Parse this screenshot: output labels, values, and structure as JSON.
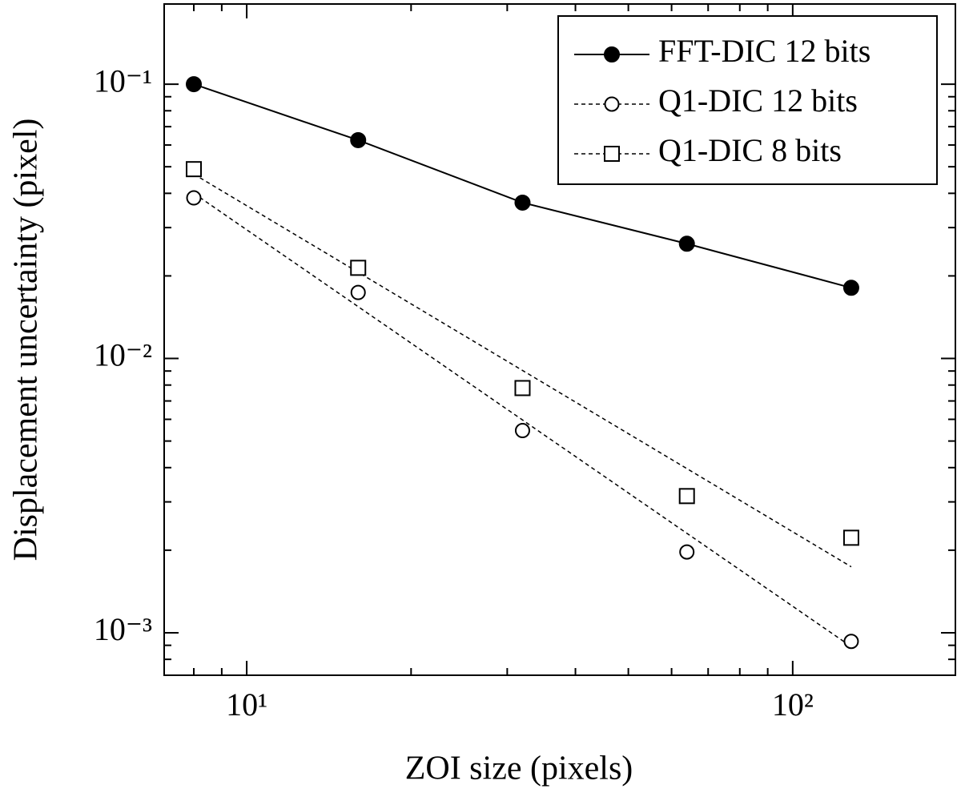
{
  "chart_data": {
    "type": "line",
    "xlabel": "ZOI size (pixels)",
    "ylabel": "Displacement uncertainty (pixel)",
    "xscale": "log",
    "yscale": "log",
    "xlim": [
      7.06,
      198.6
    ],
    "ylim": [
      0.0007,
      0.196
    ],
    "xticks": [
      {
        "value": 10,
        "label": "10¹"
      },
      {
        "value": 100,
        "label": "10²"
      }
    ],
    "yticks": [
      {
        "value": 0.1,
        "label": "10⁻¹"
      },
      {
        "value": 0.01,
        "label": "10⁻²"
      },
      {
        "value": 0.001,
        "label": "10⁻³"
      }
    ],
    "xminorticks": [
      8,
      9,
      20,
      30,
      40,
      50,
      60,
      70,
      80,
      90
    ],
    "yminorticks": [
      0.0008,
      0.0009,
      0.002,
      0.003,
      0.004,
      0.005,
      0.006,
      0.007,
      0.008,
      0.009,
      0.02,
      0.03,
      0.04,
      0.05,
      0.06,
      0.07,
      0.08,
      0.09
    ],
    "legend": "upper right",
    "x": [
      8,
      16,
      32,
      64,
      128
    ],
    "series": [
      {
        "name": "FFT-DIC 12 bits",
        "color": "#000000",
        "marker": "filled-circle",
        "line": "solid",
        "values": [
          0.1,
          0.0625,
          0.037,
          0.0262,
          0.0181
        ]
      },
      {
        "name": "Q1-DIC 12 bits",
        "color": "#000000",
        "marker": "circle",
        "line": "dashed",
        "values": [
          0.0385,
          0.0174,
          0.00546,
          0.00197,
          0.00093
        ],
        "fit": {
          "x": [
            8,
            128
          ],
          "values": [
            0.04,
            0.00089
          ]
        }
      },
      {
        "name": "Q1-DIC 8 bits",
        "color": "#000000",
        "marker": "square",
        "line": "dashed",
        "values": [
          0.049,
          0.0214,
          0.0078,
          0.00315,
          0.00222
        ],
        "fit": {
          "x": [
            8,
            128
          ],
          "values": [
            0.047,
            0.00174
          ]
        }
      }
    ]
  }
}
